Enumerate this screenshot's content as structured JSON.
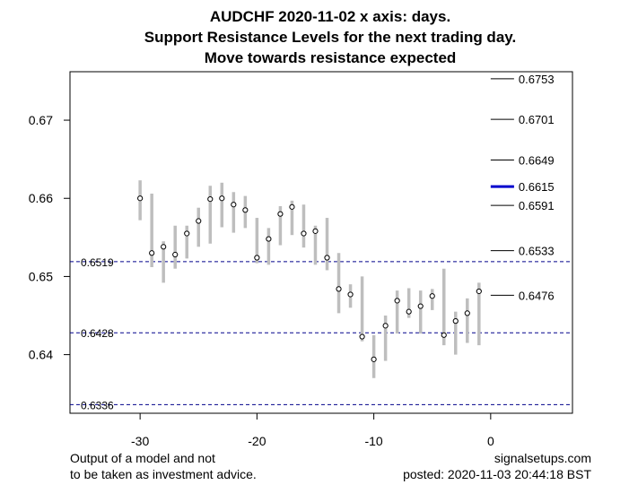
{
  "chart_data": {
    "type": "candlestick-range",
    "title_lines": [
      "AUDCHF 2020-11-02 x axis: days.",
      "Support Resistance Levels for the next trading day.",
      "Move towards resistance expected"
    ],
    "xlim": [
      -36,
      7
    ],
    "ylim": [
      0.6325,
      0.6762
    ],
    "x_ticks": [
      -30,
      -20,
      -10,
      0
    ],
    "y_ticks": [
      0.64,
      0.65,
      0.66,
      0.67
    ],
    "x_tick_labels": [
      "-30",
      "-20",
      "-10",
      "0"
    ],
    "y_tick_labels": [
      "0.64",
      "0.65",
      "0.66",
      "0.67"
    ],
    "days": [
      {
        "x": -30,
        "low": 0.6572,
        "high": 0.6623,
        "close": 0.66
      },
      {
        "x": -29,
        "low": 0.6512,
        "high": 0.6606,
        "close": 0.653
      },
      {
        "x": -28,
        "low": 0.6492,
        "high": 0.6545,
        "close": 0.6538
      },
      {
        "x": -27,
        "low": 0.651,
        "high": 0.6565,
        "close": 0.6528
      },
      {
        "x": -26,
        "low": 0.6523,
        "high": 0.6565,
        "close": 0.6555
      },
      {
        "x": -25,
        "low": 0.6538,
        "high": 0.6588,
        "close": 0.6571
      },
      {
        "x": -24,
        "low": 0.6542,
        "high": 0.6616,
        "close": 0.6599
      },
      {
        "x": -23,
        "low": 0.6563,
        "high": 0.662,
        "close": 0.66
      },
      {
        "x": -22,
        "low": 0.6556,
        "high": 0.6608,
        "close": 0.6592
      },
      {
        "x": -21,
        "low": 0.6562,
        "high": 0.6603,
        "close": 0.6585
      },
      {
        "x": -20,
        "low": 0.6517,
        "high": 0.6575,
        "close": 0.6524
      },
      {
        "x": -19,
        "low": 0.6515,
        "high": 0.6562,
        "close": 0.6548
      },
      {
        "x": -18,
        "low": 0.654,
        "high": 0.659,
        "close": 0.658
      },
      {
        "x": -17,
        "low": 0.6553,
        "high": 0.6597,
        "close": 0.6589
      },
      {
        "x": -16,
        "low": 0.6537,
        "high": 0.6592,
        "close": 0.6555
      },
      {
        "x": -15,
        "low": 0.6515,
        "high": 0.6565,
        "close": 0.6558
      },
      {
        "x": -14,
        "low": 0.6508,
        "high": 0.6575,
        "close": 0.6524
      },
      {
        "x": -13,
        "low": 0.6453,
        "high": 0.653,
        "close": 0.6484
      },
      {
        "x": -12,
        "low": 0.646,
        "high": 0.649,
        "close": 0.6477
      },
      {
        "x": -11,
        "low": 0.6417,
        "high": 0.65,
        "close": 0.6423
      },
      {
        "x": -10,
        "low": 0.637,
        "high": 0.6425,
        "close": 0.6394
      },
      {
        "x": -9,
        "low": 0.6392,
        "high": 0.645,
        "close": 0.6437
      },
      {
        "x": -8,
        "low": 0.6427,
        "high": 0.6482,
        "close": 0.6469
      },
      {
        "x": -7,
        "low": 0.6447,
        "high": 0.6485,
        "close": 0.6455
      },
      {
        "x": -6,
        "low": 0.6427,
        "high": 0.6482,
        "close": 0.6462
      },
      {
        "x": -5,
        "low": 0.6457,
        "high": 0.6484,
        "close": 0.6475
      },
      {
        "x": -4,
        "low": 0.6412,
        "high": 0.651,
        "close": 0.6425
      },
      {
        "x": -3,
        "low": 0.64,
        "high": 0.6455,
        "close": 0.6443
      },
      {
        "x": -2,
        "low": 0.6415,
        "high": 0.6472,
        "close": 0.6453
      },
      {
        "x": -1,
        "low": 0.6412,
        "high": 0.6492,
        "close": 0.6481
      }
    ],
    "support_lines": [
      {
        "value": 0.6519,
        "label": "0.6519"
      },
      {
        "value": 0.6428,
        "label": "0.6428"
      },
      {
        "value": 0.6336,
        "label": "0.6336"
      }
    ],
    "levels": [
      {
        "value": 0.6753,
        "label": "0.6753",
        "highlight": false
      },
      {
        "value": 0.6701,
        "label": "0.6701",
        "highlight": false
      },
      {
        "value": 0.6649,
        "label": "0.6649",
        "highlight": false
      },
      {
        "value": 0.6615,
        "label": "0.6615",
        "highlight": true
      },
      {
        "value": 0.6591,
        "label": "0.6591",
        "highlight": false
      },
      {
        "value": 0.6533,
        "label": "0.6533",
        "highlight": false
      },
      {
        "value": 0.6476,
        "label": "0.6476",
        "highlight": false
      }
    ],
    "colors": {
      "range_bar": "#bebebe",
      "dashed_line": "#00008b",
      "highlight_level": "#0000cd",
      "level": "#000000"
    }
  },
  "footer": {
    "left_line1": "Output of a model and not",
    "left_line2": "to be taken as investment advice.",
    "right_line1": "signalsetups.com",
    "right_line2": "posted: 2020-11-03 20:44:18 BST"
  }
}
